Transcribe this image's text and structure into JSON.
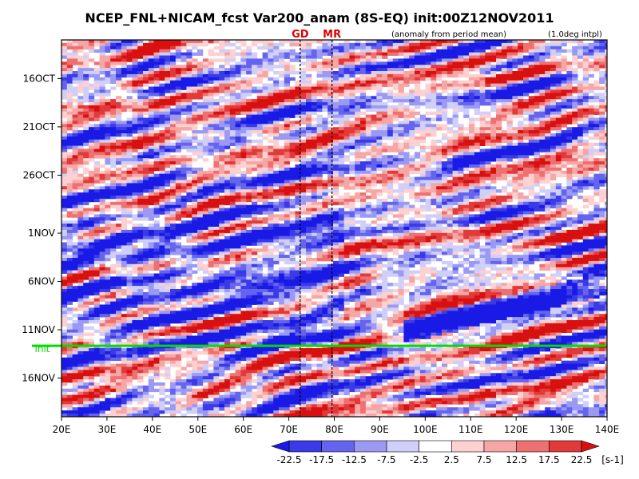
{
  "chart_data": {
    "type": "heatmap",
    "title": "NCEP_FNL+NICAM_fcst Var200_anam (8S-EQ) init:00Z12NOV2011",
    "subtitle_left": "(anomaly from period mean)",
    "subtitle_right": "(1.0deg intpl)",
    "markers": [
      {
        "label": "GD",
        "lon": 72.5,
        "color": "#e00000"
      },
      {
        "label": "MR",
        "lon": 79.5,
        "color": "#e00000"
      }
    ],
    "init_label": "init",
    "init_date": "12NOV",
    "init_color": "#00dd00",
    "x_ticks": [
      "20E",
      "30E",
      "40E",
      "50E",
      "60E",
      "70E",
      "80E",
      "90E",
      "100E",
      "110E",
      "120E",
      "130E",
      "140E"
    ],
    "x_range": [
      20,
      140
    ],
    "y_ticks": [
      "16OCT",
      "21OCT",
      "26OCT",
      "1NOV",
      "6NOV",
      "11NOV",
      "16NOV"
    ],
    "y_range_days": [
      "12OCT",
      "20NOV"
    ],
    "colorbar": {
      "levels": [
        "-22.5",
        "-17.5",
        "-12.5",
        "-7.5",
        "-2.5",
        "2.5",
        "7.5",
        "12.5",
        "17.5",
        "22.5"
      ],
      "unit": "[s-1]",
      "colors": [
        "#1a1ae6",
        "#3a3ae8",
        "#6464ee",
        "#9a9af5",
        "#cfcffa",
        "#ffffff",
        "#ffd0d0",
        "#f7a6a6",
        "#ee7070",
        "#e23a3a",
        "#d81010"
      ]
    },
    "features": [
      {
        "name": "eastward-propagating negative band",
        "from": {
          "lon": 95,
          "date": "11NOV"
        },
        "to": {
          "lon": 140,
          "date": "6NOV"
        },
        "sign": "negative"
      },
      {
        "name": "broad negative region",
        "lon_range": [
          30,
          80
        ],
        "date_range": [
          "30OCT",
          "12NOV"
        ],
        "sign": "negative"
      }
    ]
  }
}
